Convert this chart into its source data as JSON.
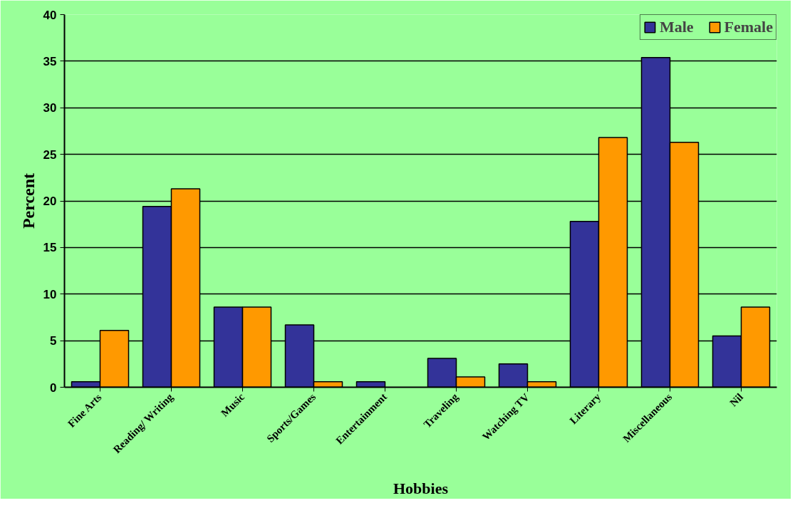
{
  "chart_data": {
    "type": "bar",
    "xlabel": "Hobbies",
    "ylabel": "Percent",
    "categories": [
      "Fine Arts",
      "Reading/ Writing",
      "Music",
      "Sports/Games",
      "Entertainment",
      "Traveling",
      "Watching TV",
      "Literary",
      "Miscellaneous",
      "Nil"
    ],
    "series": [
      {
        "name": "Male",
        "color": "#333399",
        "values": [
          0.6,
          19.4,
          8.6,
          6.7,
          0.6,
          3.1,
          2.5,
          17.8,
          35.4,
          5.5
        ]
      },
      {
        "name": "Female",
        "color": "#ff9900",
        "values": [
          6.1,
          21.3,
          8.6,
          0.6,
          null,
          1.1,
          0.6,
          26.8,
          26.3,
          8.6
        ]
      }
    ],
    "ylim": [
      0,
      40
    ],
    "yticks": [
      0,
      5,
      10,
      15,
      20,
      25,
      30,
      35,
      40
    ],
    "grid": "y",
    "legend": "top right"
  }
}
